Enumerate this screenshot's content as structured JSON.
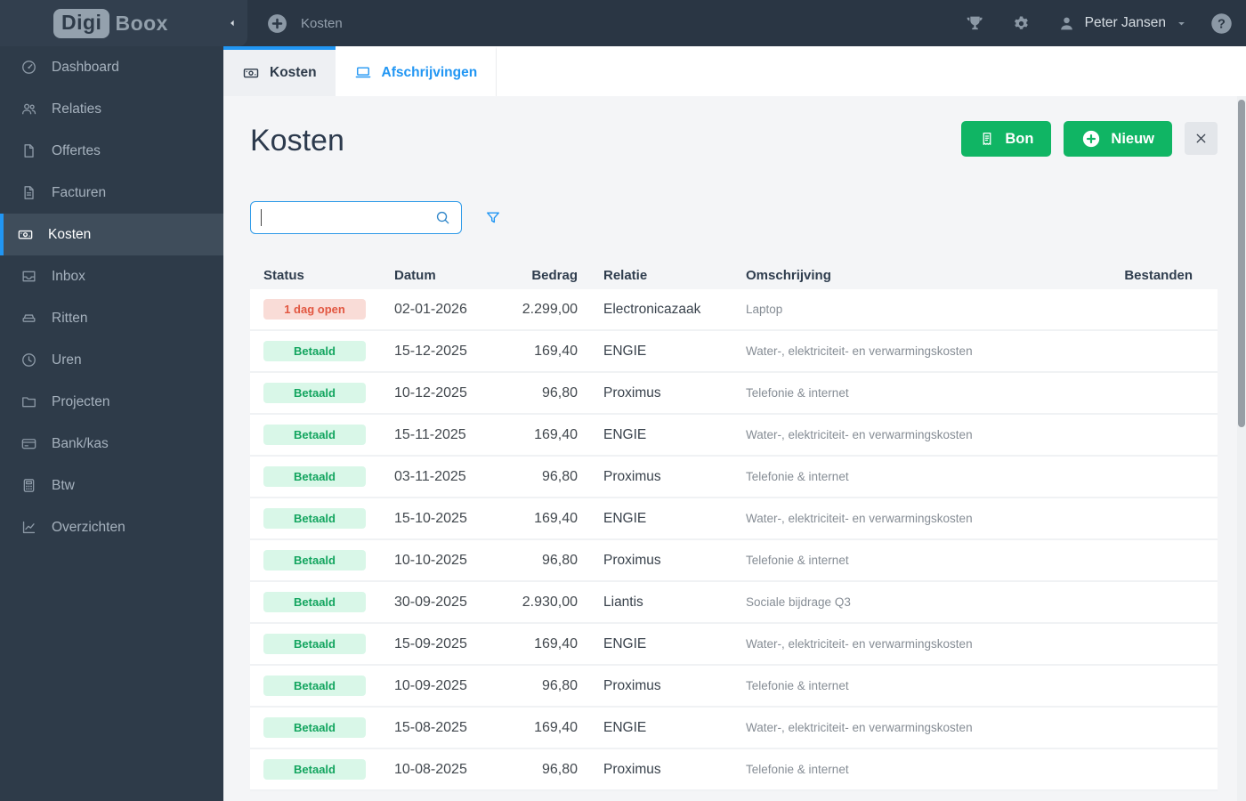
{
  "brand": {
    "logo_primary": "Digi",
    "logo_secondary": "Boox"
  },
  "topbar": {
    "open_tab_label": "Kosten",
    "user_name": "Peter Jansen"
  },
  "sidebar": {
    "items": [
      {
        "label": "Dashboard",
        "icon": "gauge",
        "active": false
      },
      {
        "label": "Relaties",
        "icon": "users",
        "active": false
      },
      {
        "label": "Offertes",
        "icon": "document",
        "active": false
      },
      {
        "label": "Facturen",
        "icon": "document-lines",
        "active": false
      },
      {
        "label": "Kosten",
        "icon": "banknote",
        "active": true
      },
      {
        "label": "Inbox",
        "icon": "inbox",
        "active": false
      },
      {
        "label": "Ritten",
        "icon": "car",
        "active": false
      },
      {
        "label": "Uren",
        "icon": "clock",
        "active": false
      },
      {
        "label": "Projecten",
        "icon": "folder",
        "active": false
      },
      {
        "label": "Bank/kas",
        "icon": "credit-card",
        "active": false
      },
      {
        "label": "Btw",
        "icon": "calculator",
        "active": false
      },
      {
        "label": "Overzichten",
        "icon": "line-chart",
        "active": false
      }
    ]
  },
  "tabs": [
    {
      "label": "Kosten",
      "icon": "banknote",
      "active": true
    },
    {
      "label": "Afschrijvingen",
      "icon": "laptop",
      "active": false
    }
  ],
  "page": {
    "title": "Kosten",
    "bon_button_label": "Bon",
    "nieuw_button_label": "Nieuw"
  },
  "search": {
    "value": "",
    "placeholder": ""
  },
  "table": {
    "columns": [
      "Status",
      "Datum",
      "Bedrag",
      "Relatie",
      "Omschrijving",
      "Bestanden"
    ],
    "rows": [
      {
        "status": "1 dag open",
        "status_type": "open",
        "datum": "02-01-2026",
        "bedrag": "2.299,00",
        "relatie": "Electronicazaak",
        "omschrijving": "Laptop"
      },
      {
        "status": "Betaald",
        "status_type": "paid",
        "datum": "15-12-2025",
        "bedrag": "169,40",
        "relatie": "ENGIE",
        "omschrijving": "Water-, elektriciteit- en verwarmingskosten"
      },
      {
        "status": "Betaald",
        "status_type": "paid",
        "datum": "10-12-2025",
        "bedrag": "96,80",
        "relatie": "Proximus",
        "omschrijving": "Telefonie & internet"
      },
      {
        "status": "Betaald",
        "status_type": "paid",
        "datum": "15-11-2025",
        "bedrag": "169,40",
        "relatie": "ENGIE",
        "omschrijving": "Water-, elektriciteit- en verwarmingskosten"
      },
      {
        "status": "Betaald",
        "status_type": "paid",
        "datum": "03-11-2025",
        "bedrag": "96,80",
        "relatie": "Proximus",
        "omschrijving": "Telefonie & internet"
      },
      {
        "status": "Betaald",
        "status_type": "paid",
        "datum": "15-10-2025",
        "bedrag": "169,40",
        "relatie": "ENGIE",
        "omschrijving": "Water-, elektriciteit- en verwarmingskosten"
      },
      {
        "status": "Betaald",
        "status_type": "paid",
        "datum": "10-10-2025",
        "bedrag": "96,80",
        "relatie": "Proximus",
        "omschrijving": "Telefonie & internet"
      },
      {
        "status": "Betaald",
        "status_type": "paid",
        "datum": "30-09-2025",
        "bedrag": "2.930,00",
        "relatie": "Liantis",
        "omschrijving": "Sociale bijdrage Q3"
      },
      {
        "status": "Betaald",
        "status_type": "paid",
        "datum": "15-09-2025",
        "bedrag": "169,40",
        "relatie": "ENGIE",
        "omschrijving": "Water-, elektriciteit- en verwarmingskosten"
      },
      {
        "status": "Betaald",
        "status_type": "paid",
        "datum": "10-09-2025",
        "bedrag": "96,80",
        "relatie": "Proximus",
        "omschrijving": "Telefonie & internet"
      },
      {
        "status": "Betaald",
        "status_type": "paid",
        "datum": "15-08-2025",
        "bedrag": "169,40",
        "relatie": "ENGIE",
        "omschrijving": "Water-, elektriciteit- en verwarmingskosten"
      },
      {
        "status": "Betaald",
        "status_type": "paid",
        "datum": "10-08-2025",
        "bedrag": "96,80",
        "relatie": "Proximus",
        "omschrijving": "Telefonie & internet"
      }
    ]
  },
  "icons": {
    "topbar": [
      "plus-circle",
      "trophy",
      "gear",
      "person",
      "caret-down",
      "question-circle"
    ],
    "sidebar_collapse": "chevron-left",
    "tab_kosten": "banknote",
    "tab_afschrijvingen": "laptop",
    "bon_button": "receipt",
    "nieuw_button": "plus-circle",
    "close_button": "x",
    "search": "magnifier",
    "filter": "funnel"
  },
  "colors": {
    "accent_blue": "#2196f3",
    "button_green": "#10b564",
    "sidebar_bg": "#2e3b49",
    "topbar_bg": "#2a3644",
    "badge_open_bg": "#f9dcd7",
    "badge_open_text": "#e25741",
    "badge_paid_bg": "#d9f7e8",
    "badge_paid_text": "#13a55f",
    "page_bg": "#f4f5f7"
  }
}
